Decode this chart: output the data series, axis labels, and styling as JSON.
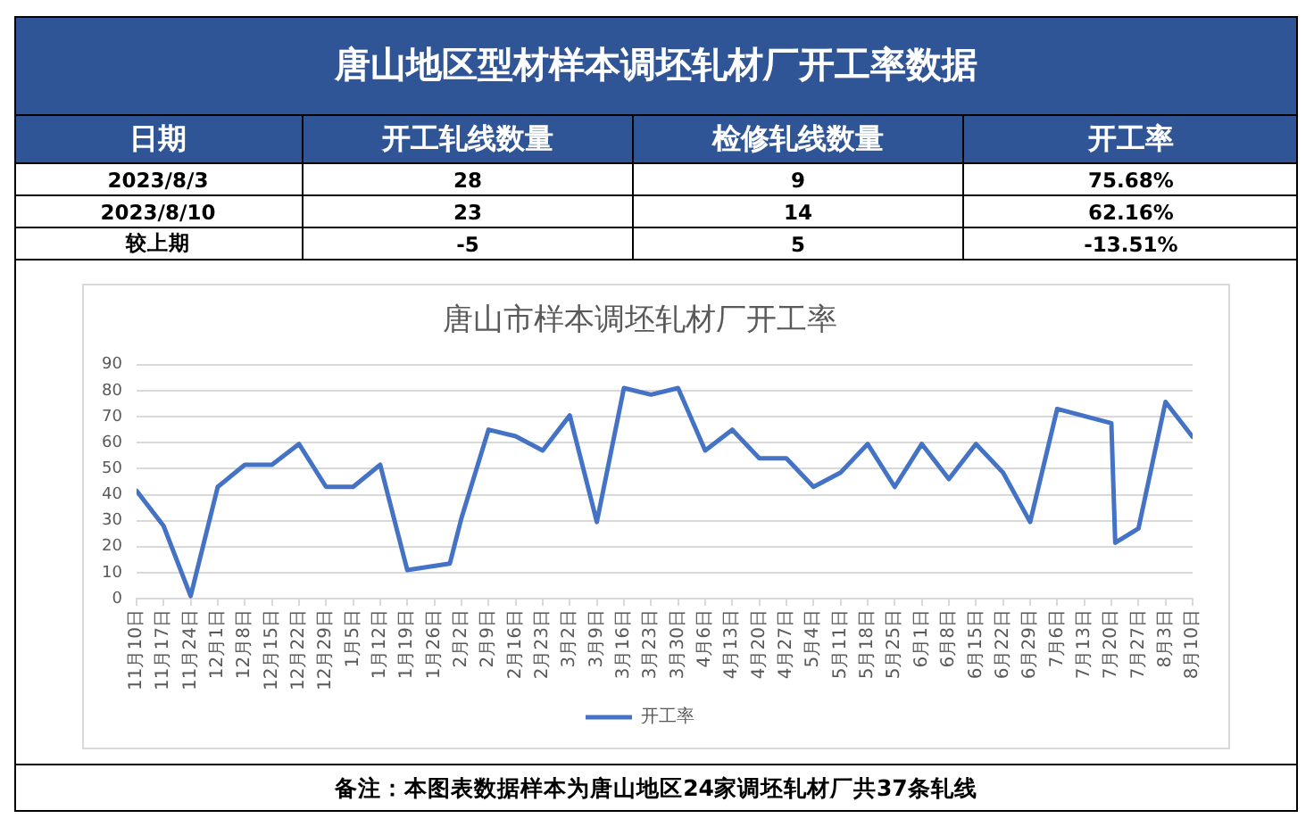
{
  "chart_data": [
    {
      "type": "other",
      "title": "唐山地区型材样本调坯轧材厂开工率数据",
      "annotations": [
        "日期",
        "开工轧线数量",
        "检修轧线数量",
        "开工率",
        "2023/8/3",
        "28",
        "9",
        "75.68%",
        "2023/8/10",
        "23",
        "14",
        "62.16%",
        "较上期",
        "-5",
        "5",
        "-13.51%"
      ]
    },
    {
      "type": "line",
      "title": "唐山市样本调坯轧材厂开工率",
      "x": [
        "2022-11-10",
        "2022-11-17",
        "2022-11-24",
        "2022-12-01",
        "2022-12-08",
        "2022-12-15",
        "2022-12-22",
        "2022-12-29",
        "2023-01-05",
        "2023-01-12",
        "2023-01-19",
        "2023-01-30",
        "2023-02-02",
        "2023-02-09",
        "2023-02-16",
        "2023-02-23",
        "2023-03-02",
        "2023-03-09",
        "2023-03-16",
        "2023-03-23",
        "2023-03-30",
        "2023-04-06",
        "2023-04-13",
        "2023-04-20",
        "2023-04-27",
        "2023-05-04",
        "2023-05-11",
        "2023-05-18",
        "2023-05-25",
        "2023-06-01",
        "2023-06-08",
        "2023-06-15",
        "2023-06-22",
        "2023-06-29",
        "2023-07-06",
        "2023-07-20",
        "2023-07-21",
        "2023-07-27",
        "2023-08-03",
        "2023-08-10"
      ],
      "series": [
        {
          "name": "开工率",
          "color": "#4472c4",
          "values": [
            41.5,
            28,
            1,
            43,
            51.5,
            51.5,
            59.5,
            43,
            43,
            51.5,
            11,
            13.5,
            31,
            65,
            62.5,
            57,
            70.5,
            29.5,
            81,
            78.5,
            81,
            57,
            65,
            54,
            54,
            43,
            48.5,
            59.5,
            43,
            59.5,
            46,
            59.5,
            48.5,
            29.5,
            73,
            67.5,
            21.5,
            27,
            75.7,
            62.2
          ]
        }
      ],
      "xlim": [
        "2022-11-10",
        "2023-08-10"
      ],
      "xticks": [
        {
          "value": "2022-11-10",
          "label": "11月10日"
        },
        {
          "value": "2022-11-17",
          "label": "11月17日"
        },
        {
          "value": "2022-11-24",
          "label": "11月24日"
        },
        {
          "value": "2022-12-01",
          "label": "12月1日"
        },
        {
          "value": "2022-12-08",
          "label": "12月8日"
        },
        {
          "value": "2022-12-15",
          "label": "12月15日"
        },
        {
          "value": "2022-12-22",
          "label": "12月22日"
        },
        {
          "value": "2022-12-29",
          "label": "12月29日"
        },
        {
          "value": "2023-01-05",
          "label": "1月5日"
        },
        {
          "value": "2023-01-12",
          "label": "1月12日"
        },
        {
          "value": "2023-01-19",
          "label": "1月19日"
        },
        {
          "value": "2023-01-26",
          "label": "1月26日"
        },
        {
          "value": "2023-02-02",
          "label": "2月2日"
        },
        {
          "value": "2023-02-09",
          "label": "2月9日"
        },
        {
          "value": "2023-02-16",
          "label": "2月16日"
        },
        {
          "value": "2023-02-23",
          "label": "2月23日"
        },
        {
          "value": "2023-03-02",
          "label": "3月2日"
        },
        {
          "value": "2023-03-09",
          "label": "3月9日"
        },
        {
          "value": "2023-03-16",
          "label": "3月16日"
        },
        {
          "value": "2023-03-23",
          "label": "3月23日"
        },
        {
          "value": "2023-03-30",
          "label": "3月30日"
        },
        {
          "value": "2023-04-06",
          "label": "4月6日"
        },
        {
          "value": "2023-04-13",
          "label": "4月13日"
        },
        {
          "value": "2023-04-20",
          "label": "4月20日"
        },
        {
          "value": "2023-04-27",
          "label": "4月27日"
        },
        {
          "value": "2023-05-04",
          "label": "5月4日"
        },
        {
          "value": "2023-05-11",
          "label": "5月11日"
        },
        {
          "value": "2023-05-18",
          "label": "5月18日"
        },
        {
          "value": "2023-05-25",
          "label": "5月25日"
        },
        {
          "value": "2023-06-01",
          "label": "6月1日"
        },
        {
          "value": "2023-06-08",
          "label": "6月8日"
        },
        {
          "value": "2023-06-15",
          "label": "6月15日"
        },
        {
          "value": "2023-06-22",
          "label": "6月22日"
        },
        {
          "value": "2023-06-29",
          "label": "6月29日"
        },
        {
          "value": "2023-07-06",
          "label": "7月6日"
        },
        {
          "value": "2023-07-13",
          "label": "7月13日"
        },
        {
          "value": "2023-07-20",
          "label": "7月20日"
        },
        {
          "value": "2023-07-27",
          "label": "7月27日"
        },
        {
          "value": "2023-08-03",
          "label": "8月3日"
        },
        {
          "value": "2023-08-10",
          "label": "8月10日"
        }
      ],
      "ylim": [
        0,
        90
      ],
      "yticks": [
        0,
        10,
        20,
        30,
        40,
        50,
        60,
        70,
        80,
        90
      ],
      "grid": "y",
      "legend": "bottom",
      "annotations": [
        "备注：本图表数据样本为唐山地区24家调坯轧材厂共37条轧线"
      ]
    }
  ]
}
